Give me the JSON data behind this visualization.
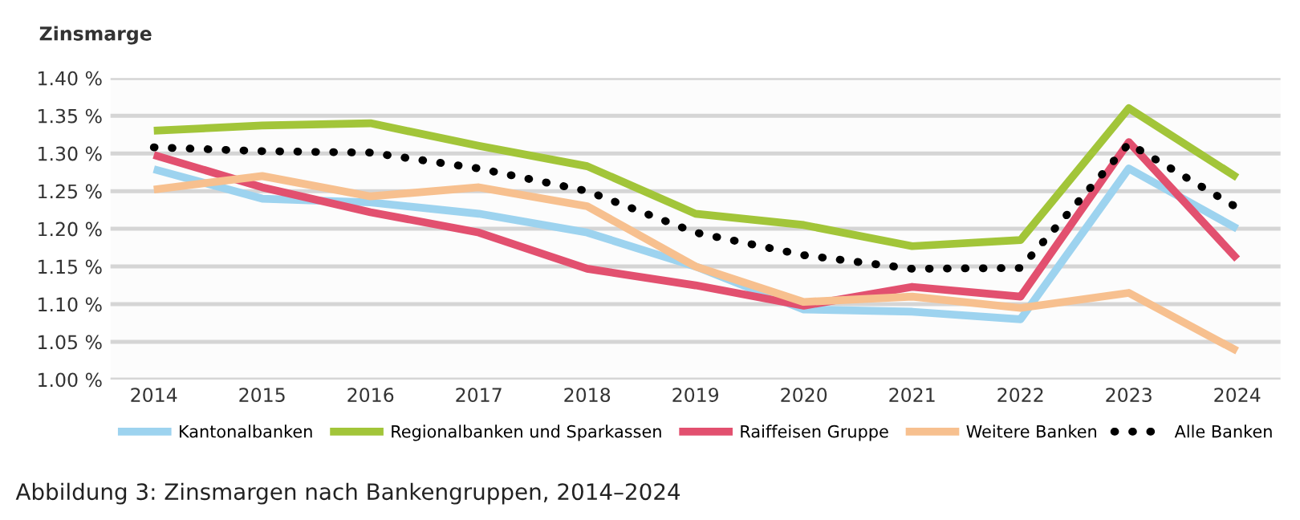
{
  "chart_data": {
    "type": "line",
    "ylabel": "Zinsmarge",
    "annotations": [
      "Abbildung 3: Zinsmargen nach Bankengruppen, 2014–2024"
    ],
    "categories": [
      "2014",
      "2015",
      "2016",
      "2017",
      "2018",
      "2019",
      "2020",
      "2021",
      "2022",
      "2023",
      "2024"
    ],
    "series": [
      {
        "name": "Kantonalbanken",
        "color": "#9dd3ef",
        "line_style": "solid",
        "values": [
          1.279,
          1.24,
          1.235,
          1.22,
          1.195,
          1.15,
          1.093,
          1.09,
          1.08,
          1.28,
          1.2
        ]
      },
      {
        "name": "Regionalbanken und Sparkassen",
        "color": "#a2c539",
        "line_style": "solid",
        "values": [
          1.33,
          1.337,
          1.34,
          1.31,
          1.283,
          1.22,
          1.205,
          1.177,
          1.185,
          1.36,
          1.268
        ]
      },
      {
        "name": "Raiffeisen Gruppe",
        "color": "#e2506f",
        "line_style": "solid",
        "values": [
          1.298,
          1.255,
          1.222,
          1.195,
          1.147,
          1.125,
          1.098,
          1.123,
          1.11,
          1.315,
          1.16
        ]
      },
      {
        "name": "Weitere Banken",
        "color": "#f7c08f",
        "line_style": "solid",
        "values": [
          1.252,
          1.27,
          1.243,
          1.255,
          1.23,
          1.15,
          1.103,
          1.11,
          1.095,
          1.115,
          1.038
        ]
      },
      {
        "name": "Alle Banken",
        "color": "#000000",
        "line_style": "dotted",
        "values": [
          1.308,
          1.303,
          1.301,
          1.28,
          1.25,
          1.195,
          1.165,
          1.147,
          1.148,
          1.313,
          1.228
        ]
      }
    ],
    "ylim": [
      1.0,
      1.4
    ],
    "yticks": [
      {
        "value": 1.0,
        "label": "1.00 %"
      },
      {
        "value": 1.05,
        "label": "1.05 %"
      },
      {
        "value": 1.1,
        "label": "1.10 %"
      },
      {
        "value": 1.15,
        "label": "1.15 %"
      },
      {
        "value": 1.2,
        "label": "1.20 %"
      },
      {
        "value": 1.25,
        "label": "1.25 %"
      },
      {
        "value": 1.3,
        "label": "1.30 %"
      },
      {
        "value": 1.35,
        "label": "1.35 %"
      },
      {
        "value": 1.4,
        "label": "1.40 %"
      }
    ],
    "grid": "y",
    "legend": "bottom",
    "marker": "none"
  }
}
